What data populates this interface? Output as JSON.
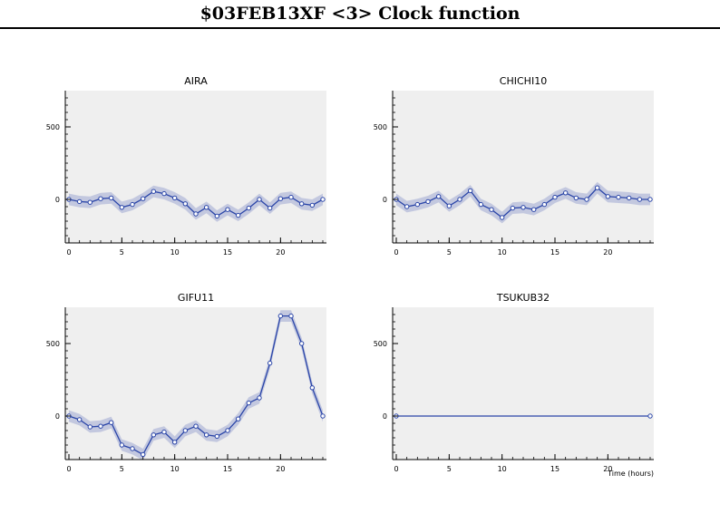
{
  "title": "$03FEB13XF <3>  Clock function",
  "colors": {
    "panel_bg": "#efefef",
    "line": "#2a45a8",
    "band": "#c3c8df"
  },
  "chart_data": [
    {
      "type": "line",
      "title": "AIRA",
      "x": [
        0,
        1,
        2,
        3,
        4,
        5,
        6,
        7,
        8,
        9,
        10,
        11,
        12,
        13,
        14,
        15,
        16,
        17,
        18,
        19,
        20,
        21,
        22,
        23,
        24
      ],
      "values": [
        0,
        -15,
        -20,
        5,
        10,
        -55,
        -35,
        5,
        55,
        40,
        10,
        -30,
        -100,
        -55,
        -115,
        -70,
        -110,
        -60,
        0,
        -60,
        5,
        15,
        -30,
        -40,
        0
      ],
      "band": 40,
      "xticks": [
        0,
        5,
        10,
        15,
        20
      ],
      "yticks": [
        0,
        500
      ],
      "xlim": [
        0,
        24
      ],
      "ylim": [
        -300,
        750
      ]
    },
    {
      "type": "line",
      "title": "CHICHI10",
      "x": [
        0,
        1,
        2,
        3,
        4,
        5,
        6,
        7,
        8,
        9,
        10,
        11,
        12,
        13,
        14,
        15,
        16,
        17,
        18,
        19,
        20,
        21,
        22,
        23,
        24
      ],
      "values": [
        0,
        -50,
        -35,
        -15,
        20,
        -45,
        0,
        60,
        -35,
        -70,
        -125,
        -60,
        -55,
        -70,
        -35,
        15,
        45,
        10,
        0,
        80,
        20,
        15,
        10,
        0,
        0
      ],
      "band": 40,
      "xticks": [
        0,
        5,
        10,
        15,
        20
      ],
      "yticks": [
        0,
        500
      ],
      "xlim": [
        0,
        24
      ],
      "ylim": [
        -300,
        750
      ]
    },
    {
      "type": "line",
      "title": "GIFU11",
      "x": [
        0,
        1,
        2,
        3,
        4,
        5,
        6,
        7,
        8,
        9,
        10,
        11,
        12,
        13,
        14,
        15,
        16,
        17,
        18,
        19,
        20,
        21,
        22,
        23,
        24
      ],
      "values": [
        0,
        -25,
        -75,
        -70,
        -45,
        -200,
        -225,
        -265,
        -130,
        -110,
        -180,
        -100,
        -70,
        -130,
        -140,
        -100,
        -20,
        90,
        125,
        365,
        690,
        690,
        500,
        195,
        0
      ],
      "band": 40,
      "xticks": [
        0,
        5,
        10,
        15,
        20
      ],
      "yticks": [
        0,
        500
      ],
      "xlim": [
        0,
        24
      ],
      "ylim": [
        -300,
        750
      ]
    },
    {
      "type": "line",
      "title": "TSUKUB32",
      "x": [
        0,
        24
      ],
      "values": [
        0,
        0
      ],
      "band": 0,
      "xticks": [
        0,
        5,
        10,
        15,
        20
      ],
      "yticks": [
        0,
        500
      ],
      "xlim": [
        0,
        24
      ],
      "ylim": [
        -300,
        750
      ],
      "xlabel": "Time (hours)"
    }
  ]
}
